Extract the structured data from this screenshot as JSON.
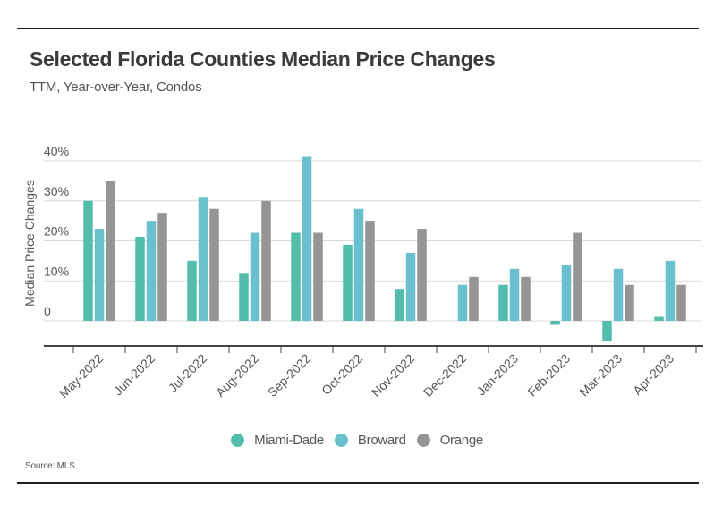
{
  "chart_data": {
    "type": "bar",
    "title": "Selected Florida Counties Median Price Changes",
    "subtitle": "TTM, Year-over-Year, Condos",
    "source": "Source: MLS",
    "xlabel": "",
    "ylabel": "Median Price Changes",
    "ylim": [
      -7,
      40
    ],
    "yticks": [
      0,
      10,
      20,
      30,
      40
    ],
    "ytick_labels": [
      "0",
      "10%",
      "20%",
      "30%",
      "40%"
    ],
    "grid": true,
    "legend_position": "bottom-center",
    "categories": [
      "May-2022",
      "Jun-2022",
      "Jul-2022",
      "Aug-2022",
      "Sep-2022",
      "Oct-2022",
      "Nov-2022",
      "Dec-2022",
      "Jan-2023",
      "Feb-2023",
      "Mar-2023",
      "Apr-2023"
    ],
    "series": [
      {
        "name": "Miami-Dade",
        "color": "#52bdaa",
        "values": [
          30,
          21,
          15,
          12,
          22,
          19,
          8,
          0,
          9,
          -1,
          -5,
          1
        ]
      },
      {
        "name": "Broward",
        "color": "#6ac0cc",
        "values": [
          23,
          25,
          31,
          22,
          41,
          28,
          17,
          9,
          13,
          14,
          13,
          15
        ]
      },
      {
        "name": "Orange",
        "color": "#959595",
        "values": [
          35,
          27,
          28,
          30,
          22,
          25,
          23,
          11,
          11,
          22,
          9,
          9
        ]
      }
    ]
  }
}
